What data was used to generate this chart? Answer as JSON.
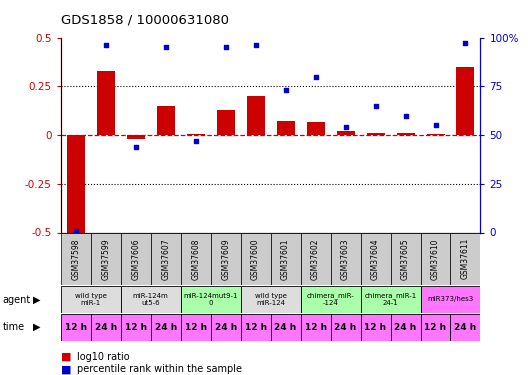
{
  "title": "GDS1858 / 10000631080",
  "samples": [
    "GSM37598",
    "GSM37599",
    "GSM37606",
    "GSM37607",
    "GSM37608",
    "GSM37609",
    "GSM37600",
    "GSM37601",
    "GSM37602",
    "GSM37603",
    "GSM37604",
    "GSM37605",
    "GSM37610",
    "GSM37611"
  ],
  "log10_ratio": [
    -0.5,
    0.33,
    -0.02,
    0.15,
    0.005,
    0.13,
    0.2,
    0.07,
    0.065,
    0.02,
    0.01,
    0.01,
    0.005,
    0.35
  ],
  "percentile_rank": [
    1,
    96,
    44,
    95,
    47,
    95,
    96,
    73,
    80,
    54,
    65,
    60,
    55,
    97
  ],
  "bar_color": "#cc0000",
  "dot_color": "#0000cc",
  "ylim_left": [
    -0.5,
    0.5
  ],
  "ylim_right": [
    0,
    100
  ],
  "yticks_left": [
    -0.5,
    -0.25,
    0.0,
    0.25,
    0.5
  ],
  "ytick_labels_left": [
    "-0.5",
    "-0.25",
    "0",
    "0.25",
    "0.5"
  ],
  "yticks_right": [
    0,
    25,
    50,
    75,
    100
  ],
  "ytick_labels_right": [
    "0",
    "25",
    "50",
    "75",
    "100%"
  ],
  "hlines_dotted": [
    0.25,
    -0.25
  ],
  "zero_line_color": "#cc0000",
  "agent_groups": [
    {
      "label": "wild type\nmiR-1",
      "start": 0,
      "end": 2,
      "color": "#dddddd"
    },
    {
      "label": "miR-124m\nut5-6",
      "start": 2,
      "end": 4,
      "color": "#dddddd"
    },
    {
      "label": "miR-124mut9-1\n0",
      "start": 4,
      "end": 6,
      "color": "#aaffaa"
    },
    {
      "label": "wild type\nmiR-124",
      "start": 6,
      "end": 8,
      "color": "#dddddd"
    },
    {
      "label": "chimera_miR-\n-124",
      "start": 8,
      "end": 10,
      "color": "#aaffaa"
    },
    {
      "label": "chimera_miR-1\n24-1",
      "start": 10,
      "end": 12,
      "color": "#aaffaa"
    },
    {
      "label": "miR373/hes3",
      "start": 12,
      "end": 14,
      "color": "#ff77ff"
    }
  ],
  "time_labels": [
    "12 h",
    "24 h",
    "12 h",
    "24 h",
    "12 h",
    "24 h",
    "12 h",
    "24 h",
    "12 h",
    "24 h",
    "12 h",
    "24 h",
    "12 h",
    "24 h"
  ],
  "time_color": "#ff77ff",
  "legend_bar_label": "log10 ratio",
  "legend_dot_label": "percentile rank within the sample"
}
